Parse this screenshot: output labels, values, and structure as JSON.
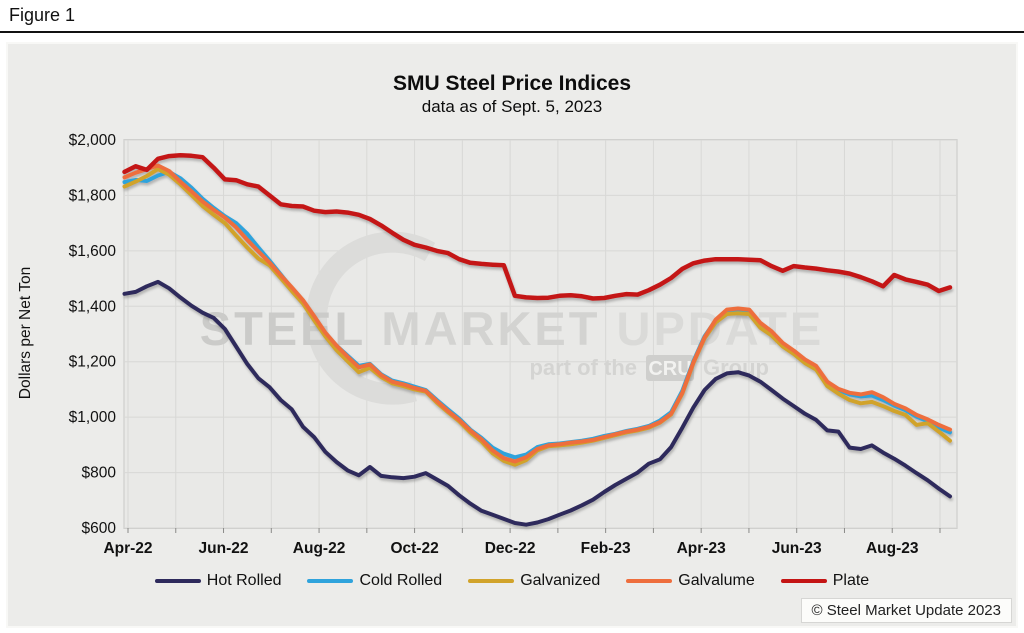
{
  "figure_label": "Figure 1",
  "header": {
    "title": "SMU Steel Price Indices",
    "subtitle": "data as of Sept. 5, 2023"
  },
  "watermark": {
    "word1": "STEEL",
    "word2": "MARKET",
    "word3": "UPDATE",
    "tagline_prefix": "part of the",
    "tagline_box": "CRU",
    "tagline_suffix": "Group"
  },
  "copyright": "© Steel Market Update 2023",
  "colors": {
    "hot_rolled": "#2e2a5c",
    "cold_rolled": "#2fa3dc",
    "galvanized": "#d1a32a",
    "galvalume": "#ee6e3d",
    "plate": "#c41414",
    "plot_bg": "#e9e9e7",
    "grid": "#d8d8d6",
    "axis": "#8a8a88",
    "watermark_gray": "#d4d4d2"
  },
  "chart_data": {
    "type": "line",
    "title": "SMU Steel Price Indices",
    "subtitle": "data as of Sept. 5, 2023",
    "xlabel": "",
    "ylabel": "Dollars per Net Ton",
    "ylim": [
      600,
      2000
    ],
    "grid": true,
    "legend_position": "bottom",
    "x_unit": "weekly, Apr 5 2022 through Sep 5 2023 (75 points)",
    "months_total": 18,
    "x_tick_labels": [
      "Apr-22",
      "Jun-22",
      "Aug-22",
      "Oct-22",
      "Dec-22",
      "Feb-23",
      "Apr-23",
      "Jun-23",
      "Aug-23"
    ],
    "y_ticks": [
      {
        "value": 2000,
        "label": "$2,000"
      },
      {
        "value": 1800,
        "label": "$1,800"
      },
      {
        "value": 1600,
        "label": "$1,600"
      },
      {
        "value": 1400,
        "label": "$1,400"
      },
      {
        "value": 1200,
        "label": "$1,200"
      },
      {
        "value": 1000,
        "label": "$1,000"
      },
      {
        "value": 800,
        "label": "$800"
      },
      {
        "value": 600,
        "label": "$600"
      }
    ],
    "draw_order": [
      1,
      2,
      3,
      0,
      4
    ],
    "series": [
      {
        "name": "Hot Rolled",
        "color": "#2e2a5c",
        "width": 4,
        "values": [
          1445,
          1452,
          1472,
          1488,
          1465,
          1432,
          1402,
          1377,
          1358,
          1318,
          1255,
          1192,
          1140,
          1108,
          1062,
          1028,
          965,
          928,
          875,
          838,
          808,
          790,
          820,
          788,
          783,
          780,
          785,
          798,
          775,
          752,
          718,
          688,
          662,
          648,
          633,
          618,
          612,
          620,
          632,
          648,
          663,
          682,
          702,
          730,
          755,
          778,
          800,
          832,
          848,
          892,
          962,
          1035,
          1098,
          1138,
          1158,
          1162,
          1150,
          1128,
          1098,
          1067,
          1040,
          1012,
          990,
          952,
          948,
          890,
          885,
          898,
          872,
          850,
          825,
          798,
          772,
          742,
          714
        ]
      },
      {
        "name": "Cold Rolled",
        "color": "#2fa3dc",
        "width": 4,
        "values": [
          1848,
          1856,
          1852,
          1872,
          1885,
          1862,
          1828,
          1788,
          1755,
          1725,
          1700,
          1662,
          1612,
          1565,
          1515,
          1465,
          1418,
          1360,
          1302,
          1258,
          1222,
          1185,
          1192,
          1155,
          1132,
          1122,
          1110,
          1098,
          1062,
          1028,
          995,
          955,
          925,
          890,
          868,
          855,
          865,
          892,
          902,
          905,
          910,
          915,
          922,
          932,
          940,
          950,
          958,
          968,
          988,
          1018,
          1095,
          1202,
          1292,
          1350,
          1378,
          1382,
          1378,
          1332,
          1302,
          1262,
          1235,
          1205,
          1182,
          1122,
          1098,
          1082,
          1075,
          1078,
          1062,
          1042,
          1025,
          1002,
          985,
          962,
          945
        ]
      },
      {
        "name": "Galvanized",
        "color": "#d1a32a",
        "width": 4,
        "values": [
          1832,
          1850,
          1870,
          1895,
          1875,
          1840,
          1802,
          1762,
          1730,
          1700,
          1655,
          1612,
          1572,
          1548,
          1502,
          1455,
          1410,
          1350,
          1292,
          1242,
          1202,
          1162,
          1178,
          1145,
          1122,
          1112,
          1100,
          1092,
          1052,
          1018,
          985,
          945,
          912,
          870,
          842,
          828,
          845,
          880,
          895,
          898,
          902,
          908,
          915,
          925,
          935,
          945,
          952,
          962,
          980,
          1010,
          1085,
          1195,
          1285,
          1342,
          1372,
          1375,
          1372,
          1322,
          1295,
          1255,
          1228,
          1195,
          1172,
          1112,
          1085,
          1062,
          1050,
          1055,
          1040,
          1022,
          1008,
          972,
          978,
          948,
          915
        ]
      },
      {
        "name": "Galvalume",
        "color": "#ee6e3d",
        "width": 4,
        "values": [
          1865,
          1882,
          1895,
          1908,
          1888,
          1850,
          1815,
          1778,
          1748,
          1720,
          1685,
          1640,
          1598,
          1558,
          1512,
          1468,
          1422,
          1365,
          1305,
          1258,
          1218,
          1180,
          1190,
          1152,
          1128,
          1118,
          1105,
          1095,
          1058,
          1022,
          990,
          952,
          920,
          880,
          852,
          840,
          855,
          885,
          898,
          902,
          908,
          912,
          918,
          928,
          938,
          948,
          955,
          965,
          982,
          1012,
          1088,
          1198,
          1288,
          1352,
          1388,
          1392,
          1388,
          1340,
          1310,
          1268,
          1240,
          1208,
          1185,
          1128,
          1102,
          1088,
          1082,
          1090,
          1072,
          1048,
          1032,
          1008,
          992,
          972,
          955
        ]
      },
      {
        "name": "Plate",
        "color": "#c41414",
        "width": 4.5,
        "values": [
          1885,
          1905,
          1892,
          1932,
          1942,
          1945,
          1943,
          1938,
          1900,
          1858,
          1855,
          1840,
          1832,
          1800,
          1768,
          1762,
          1760,
          1745,
          1740,
          1742,
          1738,
          1730,
          1715,
          1692,
          1665,
          1640,
          1622,
          1612,
          1600,
          1592,
          1570,
          1557,
          1553,
          1550,
          1548,
          1438,
          1432,
          1430,
          1431,
          1438,
          1440,
          1436,
          1428,
          1430,
          1438,
          1444,
          1442,
          1458,
          1478,
          1502,
          1535,
          1555,
          1565,
          1570,
          1570,
          1570,
          1568,
          1566,
          1545,
          1528,
          1545,
          1540,
          1536,
          1530,
          1525,
          1518,
          1505,
          1490,
          1472,
          1513,
          1497,
          1488,
          1478,
          1455,
          1468
        ]
      }
    ]
  }
}
